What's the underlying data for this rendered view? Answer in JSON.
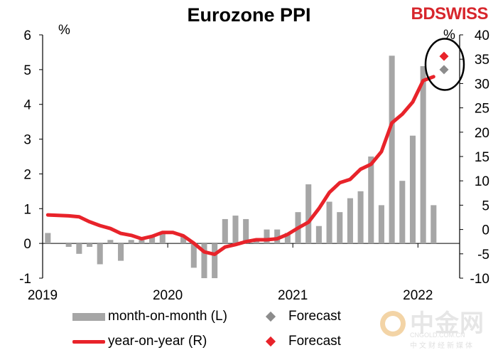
{
  "header": {
    "title": "Eurozone PPI",
    "brand_left": "BD",
    "brand_right": "SWISS"
  },
  "watermark": {
    "text": "中金网",
    "sub": "CNGOLD.COM.CN",
    "sub2": "中文财经新媒体"
  },
  "colors": {
    "bar": "#a6a6a6",
    "line": "#e8232a",
    "forecast_mom": "#8c8c8c",
    "forecast_yoy": "#e8232a",
    "circle": "#000000"
  },
  "chart_data": {
    "type": "bar",
    "title": "Eurozone PPI",
    "x_tick_labels": [
      "2019",
      "2020",
      "2021",
      "2022"
    ],
    "left_axis": {
      "unit": "%",
      "ylim": [
        -1,
        6
      ],
      "ticks": [
        "-1",
        "0",
        "1",
        "2",
        "3",
        "4",
        "5",
        "6"
      ]
    },
    "right_axis": {
      "unit": "%",
      "ylim": [
        -10,
        40
      ],
      "ticks": [
        "-10",
        "-5",
        "0",
        "5",
        "10",
        "15",
        "20",
        "25",
        "30",
        "35",
        "40"
      ]
    },
    "months": [
      "2019-01",
      "2019-02",
      "2019-03",
      "2019-04",
      "2019-05",
      "2019-06",
      "2019-07",
      "2019-08",
      "2019-09",
      "2019-10",
      "2019-11",
      "2019-12",
      "2020-01",
      "2020-02",
      "2020-03",
      "2020-04",
      "2020-05",
      "2020-06",
      "2020-07",
      "2020-08",
      "2020-09",
      "2020-10",
      "2020-11",
      "2020-12",
      "2021-01",
      "2021-02",
      "2021-03",
      "2021-04",
      "2021-05",
      "2021-06",
      "2021-07",
      "2021-08",
      "2021-09",
      "2021-10",
      "2021-11",
      "2021-12",
      "2022-01",
      "2022-02",
      "2022-03",
      "2022-04"
    ],
    "series": [
      {
        "name": "month-on-month (L)",
        "axis": "left",
        "values": [
          0.3,
          0.0,
          -0.1,
          -0.3,
          -0.1,
          -0.6,
          0.1,
          -0.5,
          0.1,
          0.1,
          0.2,
          0.3,
          0.0,
          0.2,
          -0.7,
          -1.0,
          -1.0,
          0.7,
          0.8,
          0.7,
          0.1,
          0.4,
          0.4,
          0.3,
          0.9,
          1.7,
          0.5,
          1.2,
          0.9,
          1.3,
          1.5,
          2.5,
          1.1,
          5.4,
          1.8,
          3.1,
          5.1,
          1.1,
          0.0,
          0.0
        ]
      },
      {
        "name": "year-on-year (R)",
        "axis": "right",
        "values": [
          3.0,
          2.9,
          2.8,
          2.6,
          1.6,
          0.8,
          0.2,
          -0.8,
          -1.2,
          -1.9,
          -1.4,
          -0.6,
          -0.6,
          -1.3,
          -2.8,
          -4.6,
          -5.1,
          -3.6,
          -3.1,
          -2.5,
          -2.1,
          -2.1,
          -1.9,
          -1.0,
          0.3,
          1.5,
          4.3,
          7.6,
          9.6,
          10.3,
          12.4,
          13.4,
          16.0,
          21.9,
          23.7,
          26.2,
          30.6,
          31.4,
          0.0,
          0.0
        ]
      }
    ],
    "line_months": 38,
    "bar_months": 38,
    "forecasts": [
      {
        "name": "Forecast",
        "series": "month-on-month (L)",
        "month": "2022-03",
        "value": 5.0,
        "axis": "left"
      },
      {
        "name": "Forecast",
        "series": "year-on-year (R)",
        "month": "2022-03",
        "value": 35.6,
        "axis": "right"
      }
    ],
    "legend": [
      {
        "label": "month-on-month (L)",
        "kind": "bar"
      },
      {
        "label": "Forecast",
        "kind": "diamond-gray"
      },
      {
        "label": "year-on-year (R)",
        "kind": "line"
      },
      {
        "label": "Forecast",
        "kind": "diamond-red"
      }
    ],
    "legend_position": "bottom",
    "grid": false
  }
}
